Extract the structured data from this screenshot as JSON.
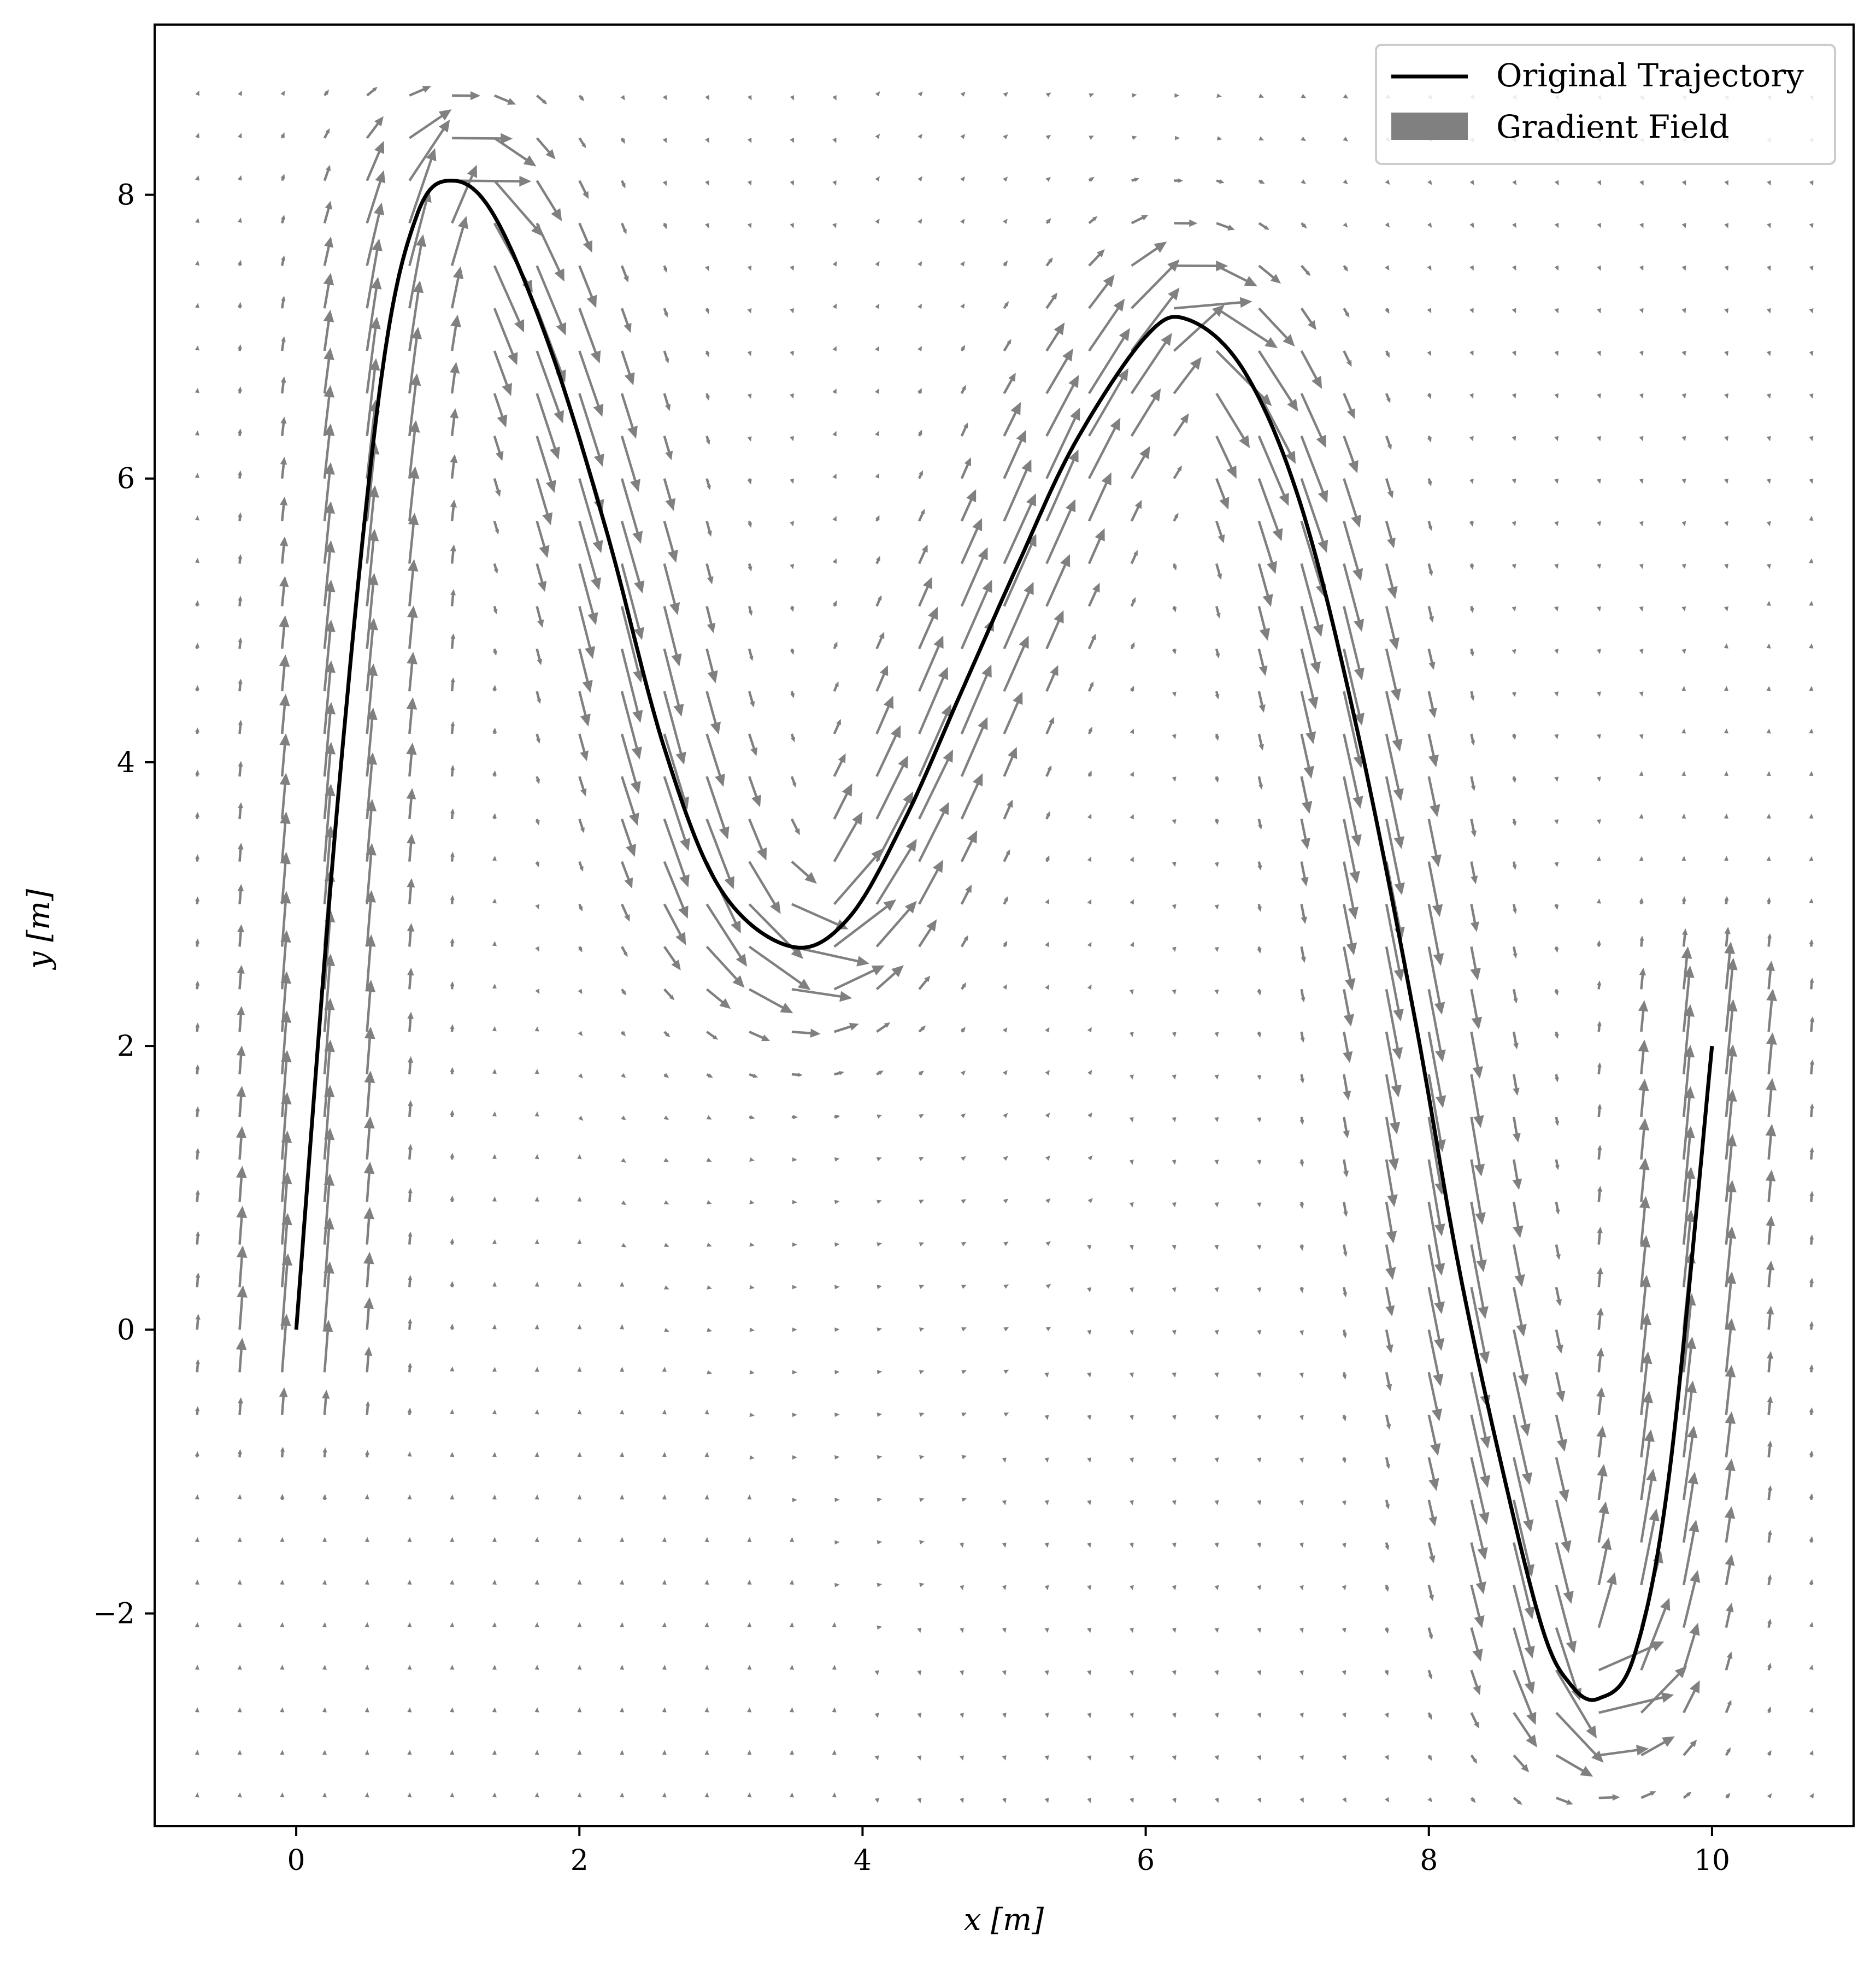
{
  "chart_data": {
    "type": "quiver+line",
    "title": "",
    "xlabel": "x [m]",
    "ylabel": "y [m]",
    "xlim": [
      -1.0,
      11.0
    ],
    "ylim": [
      -3.5,
      9.2
    ],
    "xticks": [
      0,
      2,
      4,
      6,
      8,
      10
    ],
    "yticks": [
      -2,
      0,
      2,
      4,
      6,
      8
    ],
    "xtick_labels": [
      "0",
      "2",
      "4",
      "6",
      "8",
      "10"
    ],
    "ytick_labels": [
      "−2",
      "0",
      "2",
      "4",
      "6",
      "8"
    ],
    "grid": false,
    "legend": {
      "placement": "top-right",
      "entries": [
        {
          "label": "Original Trajectory",
          "style": "line",
          "color": "#000000"
        },
        {
          "label": "Gradient Field",
          "style": "patch",
          "color": "#808080"
        }
      ]
    },
    "series": [
      {
        "name": "Original Trajectory",
        "kind": "line",
        "color": "#000000",
        "x": [
          0.0,
          0.3,
          0.6,
          0.85,
          1.1,
          1.4,
          1.8,
          2.2,
          2.6,
          3.0,
          3.5,
          3.9,
          4.3,
          4.7,
          5.1,
          5.5,
          6.0,
          6.3,
          6.7,
          7.1,
          7.5,
          7.9,
          8.2,
          8.5,
          8.8,
          9.0,
          9.2,
          9.45,
          9.7,
          10.0
        ],
        "y": [
          0.0,
          3.8,
          6.7,
          7.85,
          8.1,
          7.85,
          6.9,
          5.6,
          4.1,
          3.1,
          2.7,
          2.9,
          3.6,
          4.5,
          5.4,
          6.25,
          7.0,
          7.12,
          6.75,
          5.8,
          4.2,
          2.2,
          0.5,
          -0.9,
          -2.1,
          -2.5,
          -2.6,
          -2.3,
          -1.0,
          2.0
        ]
      },
      {
        "name": "Gradient Field",
        "kind": "quiver",
        "color": "#808080",
        "grid_x": [
          -0.7,
          10.7,
          0.3
        ],
        "grid_y": [
          -3.3,
          8.8,
          0.3
        ],
        "description_of_field": "tangent to trajectory near the curve, vanishing far away"
      }
    ]
  }
}
